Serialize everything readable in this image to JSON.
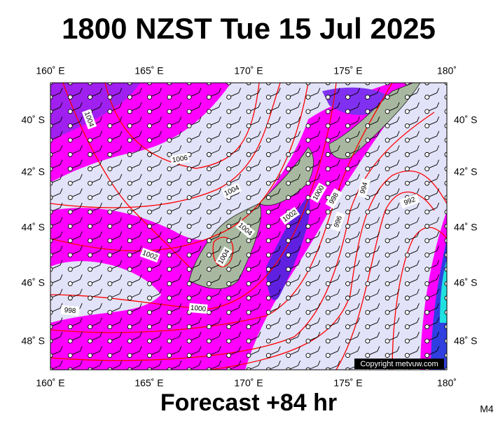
{
  "header": {
    "title": "1800 NZST Tue 15 Jul 2025"
  },
  "map": {
    "lon_labels": [
      "160˚ E",
      "165˚ E",
      "170˚ E",
      "175˚ E",
      "180˚"
    ],
    "lat_labels": [
      "40˚ S",
      "42˚ S",
      "44˚ S",
      "46˚ S",
      "48˚ S"
    ],
    "isobar_labels": [
      1004,
      1006,
      1004,
      1002,
      1000,
      998,
      996,
      994,
      992,
      1004,
      1004,
      1002,
      998,
      1000
    ],
    "copyright": "Copyright metvuw.com"
  },
  "footer": {
    "forecast": "Forecast +84 hr",
    "code": "M4"
  }
}
